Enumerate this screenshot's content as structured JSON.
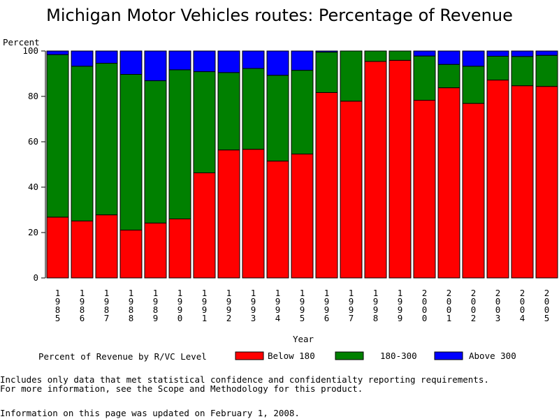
{
  "page": {
    "title": "Michigan Motor Vehicles routes: Percentage of Revenue",
    "footnotes": [
      "Includes only data that met statistical confidence and confidentialty reporting requirements.",
      "For more information, see the Scope and Methodology for this product.",
      "Information on this page was updated on February 1, 2008."
    ]
  },
  "chart_data": {
    "type": "bar",
    "stacked": true,
    "title": "Michigan Motor Vehicles routes: Percentage of Revenue",
    "xlabel": "Year",
    "ylabel": "Percent",
    "ylim": [
      0,
      100
    ],
    "yticks": [
      0,
      20,
      40,
      60,
      80,
      100
    ],
    "grid": false,
    "legend_title": "Percent of Revenue by R/VC Level",
    "legend_position": "bottom",
    "categories": [
      "1985",
      "1986",
      "1987",
      "1988",
      "1989",
      "1990",
      "1991",
      "1992",
      "1993",
      "1994",
      "1995",
      "1996",
      "1997",
      "1998",
      "1999",
      "2000",
      "2001",
      "2002",
      "2003",
      "2004",
      "2005"
    ],
    "series": [
      {
        "name": "Below 180",
        "color": "#ff0000",
        "values": [
          26.8,
          25.1,
          27.8,
          21.1,
          24.2,
          26.0,
          46.3,
          56.4,
          56.7,
          51.5,
          54.6,
          81.7,
          77.9,
          95.4,
          95.9,
          78.3,
          83.8,
          76.9,
          87.2,
          84.7,
          84.4
        ]
      },
      {
        "name": "180-300",
        "color": "#008000",
        "values": [
          71.6,
          68.2,
          66.8,
          68.6,
          62.7,
          65.7,
          44.6,
          34.1,
          35.6,
          37.8,
          36.9,
          17.8,
          22.1,
          4.6,
          4.1,
          19.5,
          10.3,
          16.4,
          10.5,
          12.9,
          13.7
        ]
      },
      {
        "name": "Above 300",
        "color": "#0000ff",
        "values": [
          1.6,
          6.7,
          5.4,
          10.3,
          13.1,
          8.3,
          9.1,
          9.5,
          7.7,
          10.7,
          8.5,
          0.5,
          0.0,
          0.0,
          0.0,
          2.2,
          5.9,
          6.7,
          2.3,
          2.4,
          1.9
        ]
      }
    ]
  }
}
